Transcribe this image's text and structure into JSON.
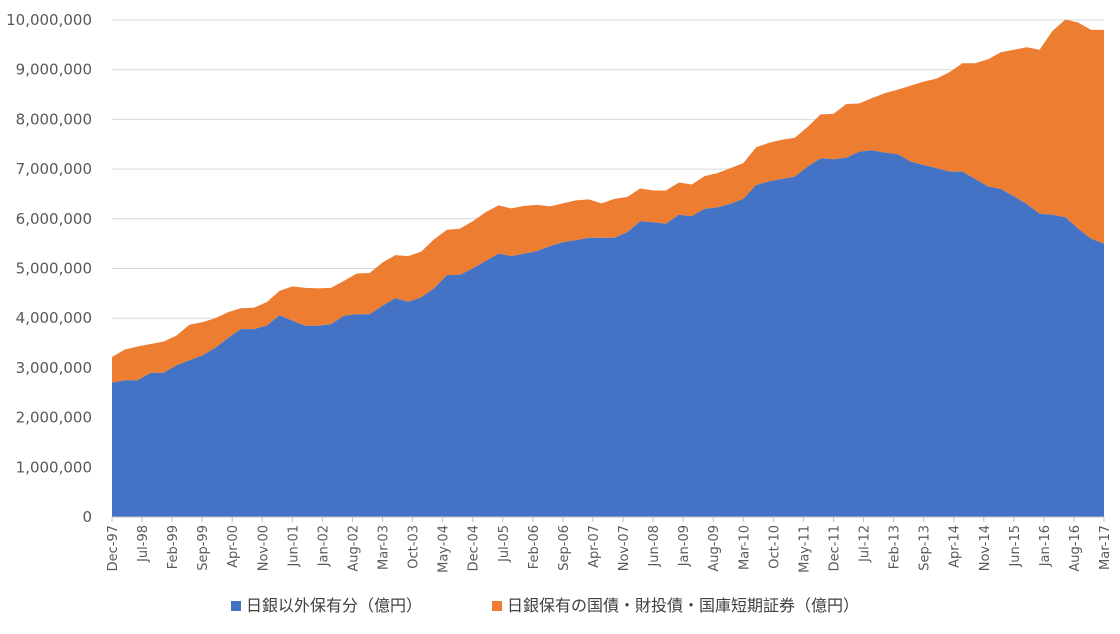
{
  "chart_data": {
    "type": "area",
    "stacked": true,
    "title": "",
    "xlabel": "",
    "ylabel": "",
    "ylim": [
      0,
      10000000
    ],
    "grid": "horizontal",
    "legend_position": "bottom",
    "y_ticks": [
      0,
      1000000,
      2000000,
      3000000,
      4000000,
      5000000,
      6000000,
      7000000,
      8000000,
      9000000,
      10000000
    ],
    "y_tick_labels": [
      "0",
      "1,000,000",
      "2,000,000",
      "3,000,000",
      "4,000,000",
      "5,000,000",
      "6,000,000",
      "7,000,000",
      "8,000,000",
      "9,000,000",
      "10,000,000"
    ],
    "x_tick_labels": [
      "Dec-97",
      "Jul-98",
      "Feb-99",
      "Sep-99",
      "Apr-00",
      "Nov-00",
      "Jun-01",
      "Jan-02",
      "Aug-02",
      "Mar-03",
      "Oct-03",
      "May-04",
      "Dec-04",
      "Jul-05",
      "Feb-06",
      "Sep-06",
      "Apr-07",
      "Nov-07",
      "Jun-08",
      "Jan-09",
      "Aug-09",
      "Mar-10",
      "Oct-10",
      "May-11",
      "Dec-11",
      "Jul-12",
      "Feb-13",
      "Sep-13",
      "Apr-14",
      "Nov-14",
      "Jun-15",
      "Jan-16",
      "Aug-16",
      "Mar-17"
    ],
    "x": [
      "Dec-97",
      "Mar-98",
      "Jun-98",
      "Sep-98",
      "Dec-98",
      "Mar-99",
      "Jun-99",
      "Sep-99",
      "Dec-99",
      "Mar-00",
      "Jun-00",
      "Sep-00",
      "Dec-00",
      "Mar-01",
      "Jun-01",
      "Sep-01",
      "Dec-01",
      "Mar-02",
      "Jun-02",
      "Sep-02",
      "Dec-02",
      "Mar-03",
      "Jun-03",
      "Sep-03",
      "Dec-03",
      "Mar-04",
      "Jun-04",
      "Sep-04",
      "Dec-04",
      "Mar-05",
      "Jun-05",
      "Sep-05",
      "Dec-05",
      "Mar-06",
      "Jun-06",
      "Sep-06",
      "Dec-06",
      "Mar-07",
      "Jun-07",
      "Sep-07",
      "Dec-07",
      "Mar-08",
      "Jun-08",
      "Sep-08",
      "Dec-08",
      "Mar-09",
      "Jun-09",
      "Sep-09",
      "Dec-09",
      "Mar-10",
      "Jun-10",
      "Sep-10",
      "Dec-10",
      "Mar-11",
      "Jun-11",
      "Sep-11",
      "Dec-11",
      "Mar-12",
      "Jun-12",
      "Sep-12",
      "Dec-12",
      "Mar-13",
      "Jun-13",
      "Sep-13",
      "Dec-13",
      "Mar-14",
      "Jun-14",
      "Sep-14",
      "Dec-14",
      "Mar-15",
      "Jun-15",
      "Sep-15",
      "Dec-15",
      "Mar-16",
      "Jun-16",
      "Sep-16",
      "Dec-16",
      "Mar-17"
    ],
    "series": [
      {
        "name": "日銀以外保有分（億円）",
        "color": "#4472C4",
        "values": [
          2700000,
          2750000,
          2750000,
          2900000,
          2900000,
          3050000,
          3150000,
          3250000,
          3400000,
          3600000,
          3780000,
          3780000,
          3850000,
          4060000,
          3950000,
          3850000,
          3850000,
          3880000,
          4050000,
          4080000,
          4080000,
          4250000,
          4400000,
          4330000,
          4420000,
          4600000,
          4870000,
          4870000,
          5000000,
          5150000,
          5300000,
          5250000,
          5300000,
          5350000,
          5450000,
          5530000,
          5570000,
          5620000,
          5620000,
          5620000,
          5730000,
          5950000,
          5930000,
          5900000,
          6080000,
          6050000,
          6200000,
          6230000,
          6300000,
          6400000,
          6680000,
          6750000,
          6800000,
          6850000,
          7050000,
          7220000,
          7200000,
          7230000,
          7350000,
          7380000,
          7330000,
          7300000,
          7150000,
          7080000,
          7020000,
          6950000,
          6950000,
          6800000,
          6650000,
          6600000,
          6450000,
          6300000,
          6100000,
          6080000,
          6030000,
          5800000,
          5600000,
          5500000
        ]
      },
      {
        "name": "日銀保有の国債・財投債・国庫短期証券（億円）",
        "color": "#ED7D31",
        "values": [
          520000,
          620000,
          680000,
          580000,
          630000,
          600000,
          720000,
          670000,
          600000,
          520000,
          420000,
          430000,
          470000,
          490000,
          690000,
          760000,
          750000,
          730000,
          700000,
          820000,
          830000,
          870000,
          870000,
          920000,
          920000,
          990000,
          910000,
          930000,
          950000,
          980000,
          970000,
          960000,
          960000,
          930000,
          800000,
          780000,
          800000,
          770000,
          690000,
          780000,
          710000,
          660000,
          640000,
          670000,
          650000,
          640000,
          660000,
          690000,
          720000,
          720000,
          760000,
          780000,
          790000,
          780000,
          800000,
          880000,
          910000,
          1080000,
          970000,
          1050000,
          1200000,
          1300000,
          1530000,
          1680000,
          1800000,
          2000000,
          2180000,
          2330000,
          2560000,
          2750000,
          2950000,
          3150000,
          3300000,
          3700000,
          3980000,
          4150000,
          4200000,
          4300000
        ]
      }
    ]
  }
}
